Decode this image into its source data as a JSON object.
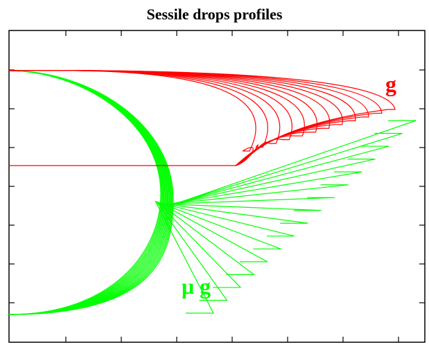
{
  "title": "Sessile drops profiles",
  "colors": {
    "earth": "#ff0000",
    "micro": "#00ff00",
    "frame": "#000000"
  },
  "chart_data": {
    "type": "line",
    "title": "Sessile drops profiles",
    "xlabel": "",
    "ylabel": "",
    "grid": false,
    "series": [
      {
        "name": "g",
        "color": "#ff0000",
        "profile_count": 12
      },
      {
        "name": "μ g",
        "color": "#00ff00",
        "profile_count": 16
      }
    ],
    "annotations": [
      {
        "text": "g",
        "color": "#ff0000"
      },
      {
        "text": "μ g",
        "color": "#00ff00"
      }
    ]
  }
}
